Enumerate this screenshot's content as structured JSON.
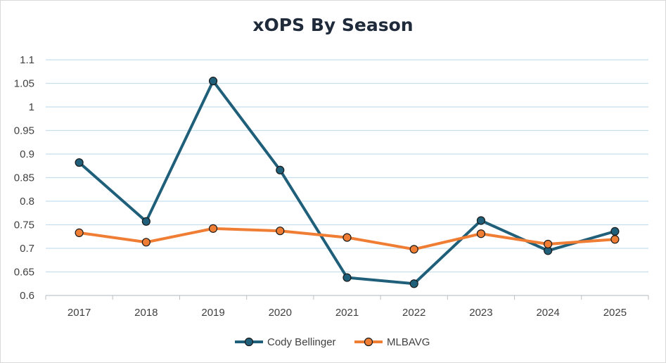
{
  "chart_data": {
    "type": "line",
    "title": "xOPS By Season",
    "categories": [
      "2017",
      "2018",
      "2019",
      "2020",
      "2021",
      "2022",
      "2023",
      "2024",
      "2025"
    ],
    "ylim": [
      0.6,
      1.1
    ],
    "yticks": [
      "1.1",
      "1.05",
      "1",
      "0.95",
      "0.9",
      "0.85",
      "0.8",
      "0.75",
      "0.7",
      "0.65",
      "0.6"
    ],
    "ytick_values": [
      1.1,
      1.05,
      1.0,
      0.95,
      0.9,
      0.85,
      0.8,
      0.75,
      0.7,
      0.65,
      0.6
    ],
    "grid": true,
    "legend_position": "bottom",
    "series": [
      {
        "name": "Cody Bellinger",
        "color": "#1f5f7a",
        "values": [
          0.882,
          0.757,
          1.055,
          0.866,
          0.638,
          0.625,
          0.759,
          0.695,
          0.736
        ]
      },
      {
        "name": "MLBAVG",
        "color": "#f07d34",
        "values": [
          0.733,
          0.713,
          0.742,
          0.737,
          0.723,
          0.698,
          0.731,
          0.709,
          0.719
        ]
      }
    ]
  }
}
